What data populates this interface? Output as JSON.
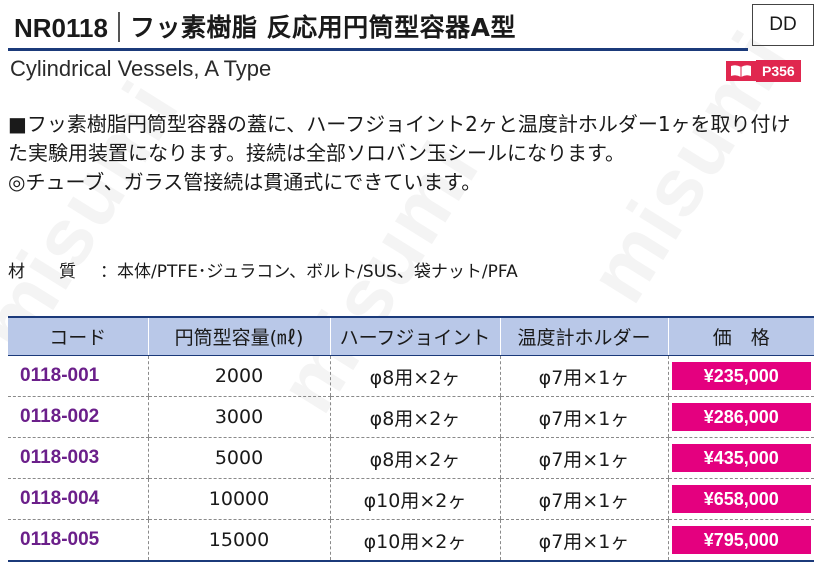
{
  "header": {
    "code": "NR0118",
    "title": "フッ素樹脂 反応用円筒型容器A型",
    "category": "DD"
  },
  "subtitle": "Cylindrical Vessels, A Type",
  "page_ref": {
    "icon": "book-icon",
    "label": "P356",
    "color": "#e0274f"
  },
  "description": [
    "■フッ素樹脂円筒型容器の蓋に、ハーフジョイント2ヶと温度計ホルダー1ヶを取り付けた実験用装置になります。接続は全部ソロバン玉シールになります。",
    "◎チューブ、ガラス管接続は貫通式にできています。"
  ],
  "material": {
    "label": "材　　質",
    "value": "：本体/PTFE･ジュラコン、ボルト/SUS、袋ナット/PFA"
  },
  "watermark": "misumi",
  "table": {
    "headers": [
      "コード",
      "円筒型容量(㎖)",
      "ハーフジョイント",
      "温度計ホルダー",
      "価　格"
    ],
    "rows": [
      {
        "code": "0118-001",
        "capacity": "2000",
        "half_joint": "φ8用×2ヶ",
        "holder": "φ7用×1ヶ",
        "price": "¥235,000"
      },
      {
        "code": "0118-002",
        "capacity": "3000",
        "half_joint": "φ8用×2ヶ",
        "holder": "φ7用×1ヶ",
        "price": "¥286,000"
      },
      {
        "code": "0118-003",
        "capacity": "5000",
        "half_joint": "φ8用×2ヶ",
        "holder": "φ7用×1ヶ",
        "price": "¥435,000"
      },
      {
        "code": "0118-004",
        "capacity": "10000",
        "half_joint": "φ10用×2ヶ",
        "holder": "φ7用×1ヶ",
        "price": "¥658,000"
      },
      {
        "code": "0118-005",
        "capacity": "15000",
        "half_joint": "φ10用×2ヶ",
        "holder": "φ7用×1ヶ",
        "price": "¥795,000"
      }
    ]
  },
  "colors": {
    "code_text": "#6b1f8a",
    "price_bg": "#e4007f",
    "header_bg": "#b9c8e8",
    "rule": "#1b3a7a"
  }
}
